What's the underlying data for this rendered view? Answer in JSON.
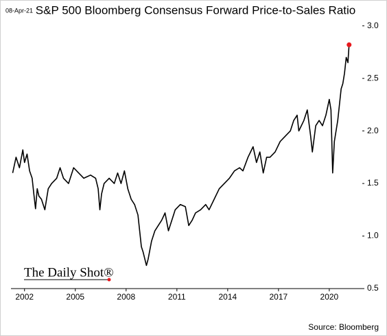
{
  "chart_data": {
    "type": "line",
    "date": "08-Apr-21",
    "title": "S&P 500 Bloomberg Consensus Forward Price-to-Sales Ratio",
    "source": "Source: Bloomberg",
    "watermark": "The Daily Shot®",
    "color": "#000000",
    "marker_color": "#e8191e",
    "x": [
      2001.3,
      2001.5,
      2001.7,
      2001.9,
      2002.0,
      2002.15,
      2002.3,
      2002.45,
      2002.55,
      2002.65,
      2002.75,
      2002.85,
      2003.0,
      2003.2,
      2003.4,
      2003.6,
      2003.9,
      2004.1,
      2004.3,
      2004.6,
      2004.9,
      2005.2,
      2005.5,
      2005.9,
      2006.2,
      2006.35,
      2006.45,
      2006.55,
      2006.7,
      2007.0,
      2007.3,
      2007.5,
      2007.7,
      2007.9,
      2008.1,
      2008.3,
      2008.5,
      2008.7,
      2008.8,
      2008.9,
      2009.0,
      2009.2,
      2009.3,
      2009.5,
      2009.7,
      2009.9,
      2010.1,
      2010.3,
      2010.5,
      2010.7,
      2010.9,
      2011.2,
      2011.5,
      2011.7,
      2011.9,
      2012.1,
      2012.4,
      2012.7,
      2012.9,
      2013.2,
      2013.5,
      2013.8,
      2014.1,
      2014.4,
      2014.7,
      2014.9,
      2015.2,
      2015.5,
      2015.7,
      2015.9,
      2016.1,
      2016.3,
      2016.5,
      2016.8,
      2017.1,
      2017.4,
      2017.7,
      2017.9,
      2018.1,
      2018.2,
      2018.5,
      2018.7,
      2018.9,
      2019.0,
      2019.2,
      2019.4,
      2019.6,
      2019.8,
      2020.0,
      2020.1,
      2020.2,
      2020.3,
      2020.5,
      2020.7,
      2020.8,
      2020.9,
      2021.0,
      2021.1,
      2021.17
    ],
    "values": [
      1.6,
      1.75,
      1.65,
      1.82,
      1.7,
      1.78,
      1.62,
      1.55,
      1.4,
      1.26,
      1.45,
      1.38,
      1.35,
      1.25,
      1.45,
      1.5,
      1.55,
      1.65,
      1.55,
      1.5,
      1.65,
      1.6,
      1.55,
      1.58,
      1.55,
      1.45,
      1.25,
      1.4,
      1.5,
      1.55,
      1.5,
      1.6,
      1.5,
      1.62,
      1.45,
      1.35,
      1.3,
      1.2,
      1.05,
      0.9,
      0.85,
      0.72,
      0.78,
      0.95,
      1.05,
      1.1,
      1.15,
      1.22,
      1.05,
      1.15,
      1.25,
      1.3,
      1.28,
      1.1,
      1.15,
      1.22,
      1.25,
      1.3,
      1.25,
      1.35,
      1.45,
      1.5,
      1.55,
      1.62,
      1.65,
      1.62,
      1.75,
      1.85,
      1.7,
      1.8,
      1.6,
      1.75,
      1.75,
      1.8,
      1.9,
      1.95,
      2.0,
      2.1,
      2.15,
      2.0,
      2.1,
      2.2,
      1.95,
      1.8,
      2.05,
      2.1,
      2.05,
      2.15,
      2.3,
      2.2,
      1.6,
      1.9,
      2.1,
      2.4,
      2.45,
      2.55,
      2.7,
      2.65,
      2.82
    ],
    "xlim": [
      2001.2,
      2021.95
    ],
    "xticks": [
      2002,
      2005,
      2008,
      2011,
      2014,
      2017,
      2020
    ],
    "ylim": [
      0.5,
      3.05
    ],
    "yticks": [
      0.5,
      {
        "value": 1,
        "label": "1.0"
      },
      1.5,
      {
        "value": 2,
        "label": "2.0"
      },
      2.5,
      {
        "value": 3,
        "label": "3.0"
      }
    ]
  }
}
